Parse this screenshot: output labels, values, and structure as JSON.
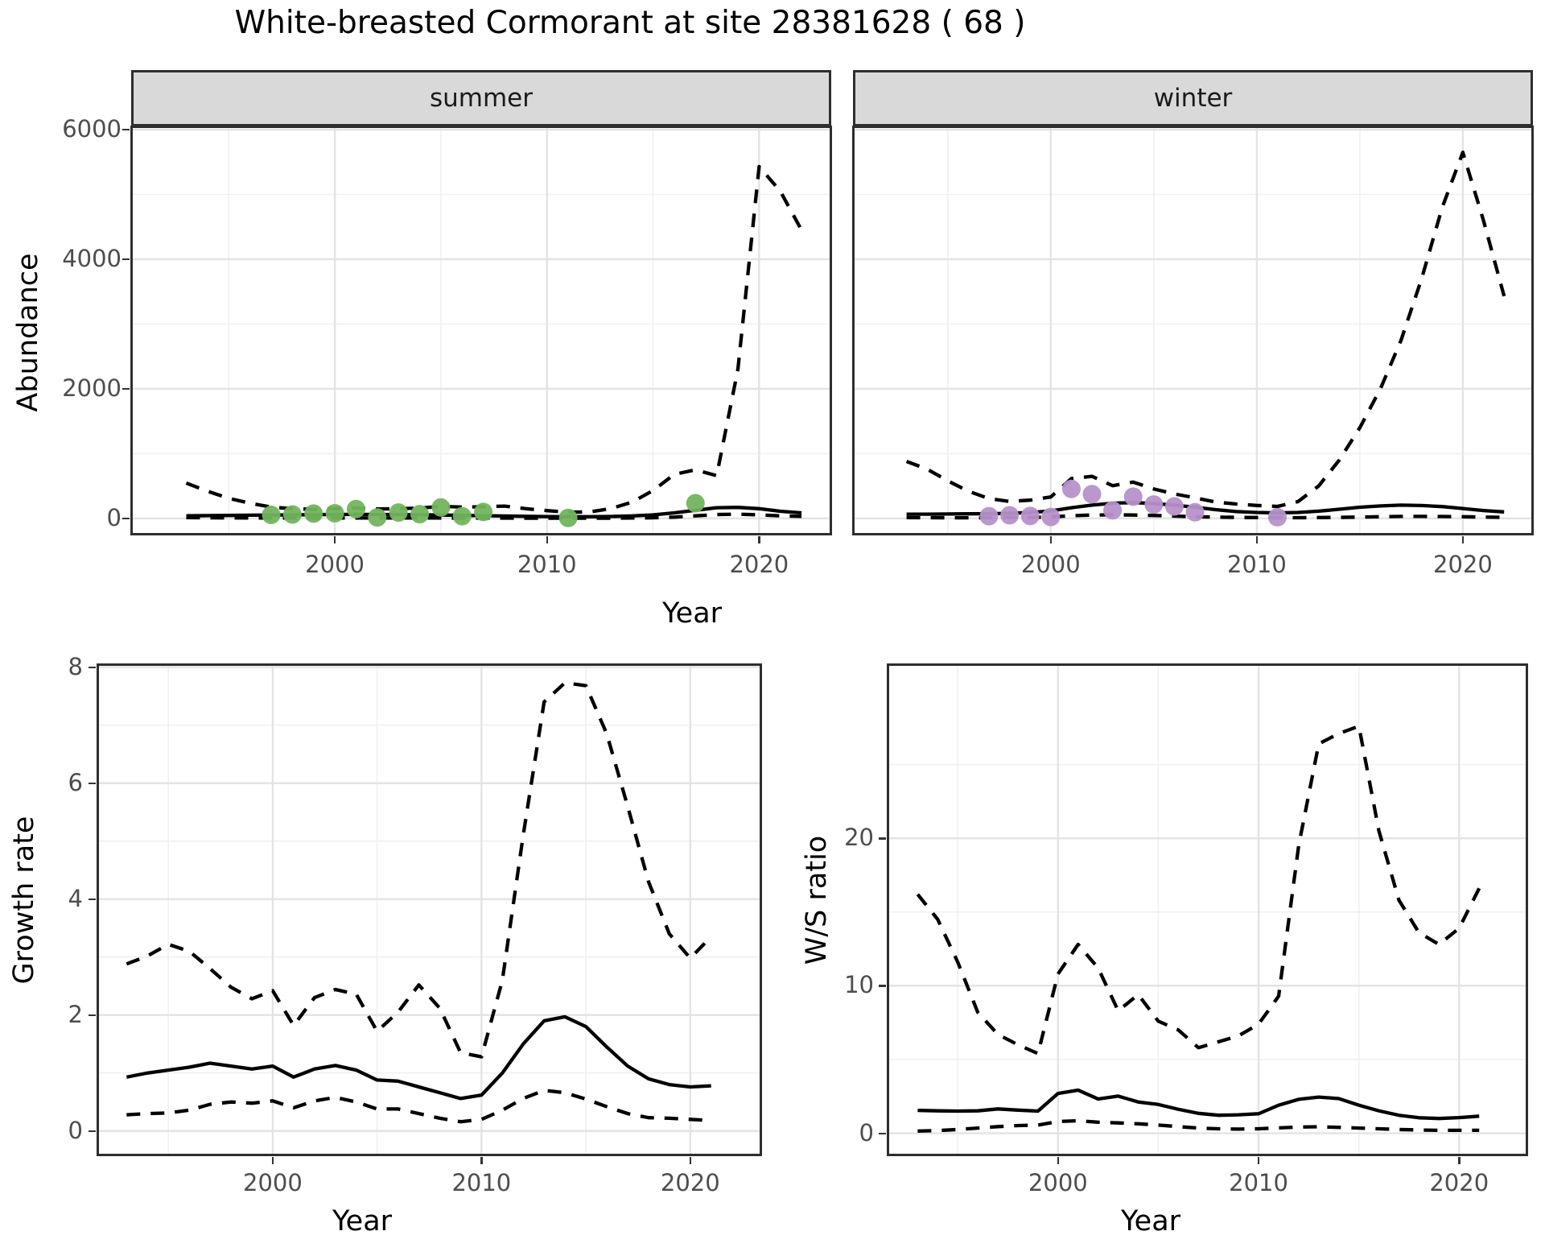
{
  "title": "White-breasted Cormorant at site 28381628 ( 68 )",
  "facets": {
    "summer": "summer",
    "winter": "winter"
  },
  "axis_titles": {
    "abundance": "Abundance",
    "growth": "Growth rate",
    "ws_ratio": "W/S ratio",
    "year_top": "Year",
    "year_bottom_left": "Year",
    "year_bottom_right": "Year"
  },
  "colors": {
    "summer_point": "#72b55e",
    "winter_point": "#b691c9",
    "line": "#000000",
    "strip_bg": "#d9d9d9",
    "panel_border": "#2e2e2e",
    "grid_major": "#e3e3e3",
    "grid_minor": "#f0f0f0",
    "tick_text": "#4d4d4d"
  },
  "chart_data": [
    {
      "id": "abundance-summer",
      "type": "line",
      "strip": "summer",
      "xlabel": "Year",
      "ylabel": "Abundance",
      "xlim": [
        1990.4,
        2023.4
      ],
      "ylim": [
        -250,
        6050
      ],
      "xticks": {
        "major": [
          2000,
          2010,
          2020
        ],
        "minor": [
          1995,
          2005,
          2015
        ],
        "labels": [
          "2000",
          "2010",
          "2020"
        ]
      },
      "yticks": {
        "major": [
          0,
          2000,
          4000,
          6000
        ],
        "minor": [
          1000,
          3000,
          5000
        ],
        "labels": [
          "0",
          "2000",
          "4000",
          "6000"
        ]
      },
      "x": [
        1993,
        1994,
        1995,
        1996,
        1997,
        1998,
        1999,
        2000,
        2001,
        2002,
        2003,
        2004,
        2005,
        2006,
        2007,
        2008,
        2009,
        2010,
        2011,
        2012,
        2013,
        2014,
        2015,
        2016,
        2017,
        2018,
        2019,
        2020,
        2021,
        2022
      ],
      "series": [
        {
          "name": "upper_ci",
          "style": "dashed",
          "values": [
            545,
            420,
            310,
            235,
            175,
            150,
            140,
            150,
            160,
            145,
            150,
            160,
            185,
            175,
            180,
            190,
            150,
            120,
            95,
            100,
            150,
            250,
            430,
            680,
            750,
            660,
            2300,
            5430,
            5050,
            4450
          ]
        },
        {
          "name": "median",
          "style": "solid",
          "values": [
            40,
            43,
            46,
            49,
            52,
            55,
            58,
            61,
            62,
            61,
            59,
            56,
            52,
            47,
            42,
            37,
            32,
            28,
            26,
            26,
            30,
            38,
            55,
            85,
            125,
            165,
            170,
            150,
            110,
            85
          ]
        },
        {
          "name": "lower_ci",
          "style": "dashed",
          "values": [
            12,
            10,
            8,
            7,
            6,
            6,
            6,
            6,
            7,
            6,
            6,
            6,
            6,
            5,
            5,
            5,
            4,
            3,
            3,
            3,
            4,
            6,
            10,
            20,
            40,
            60,
            65,
            55,
            40,
            32
          ]
        }
      ],
      "points": {
        "name": "observed_summer",
        "color": "#72b55e",
        "x": [
          1997,
          1998,
          1999,
          2000,
          2001,
          2002,
          2003,
          2004,
          2005,
          2006,
          2007,
          2011,
          2017
        ],
        "y": [
          55,
          60,
          75,
          80,
          145,
          15,
          90,
          65,
          170,
          35,
          100,
          8,
          235
        ]
      }
    },
    {
      "id": "abundance-winter",
      "type": "line",
      "strip": "winter",
      "xlabel": "Year",
      "ylabel": "Abundance",
      "xlim": [
        1990.4,
        2023.4
      ],
      "ylim": [
        -250,
        6050
      ],
      "xticks": {
        "major": [
          2000,
          2010,
          2020
        ],
        "minor": [
          1995,
          2005,
          2015
        ],
        "labels": [
          "2000",
          "2010",
          "2020"
        ]
      },
      "yticks": {
        "major": [
          0,
          2000,
          4000,
          6000
        ],
        "minor": [
          1000,
          3000,
          5000
        ],
        "labels": [
          "0",
          "2000",
          "4000",
          "6000"
        ]
      },
      "x": [
        1993,
        1994,
        1995,
        1996,
        1997,
        1998,
        1999,
        2000,
        2001,
        2002,
        2003,
        2004,
        2005,
        2006,
        2007,
        2008,
        2009,
        2010,
        2011,
        2012,
        2013,
        2014,
        2015,
        2016,
        2017,
        2018,
        2019,
        2020,
        2021,
        2022
      ],
      "series": [
        {
          "name": "upper_ci",
          "style": "dashed",
          "values": [
            880,
            760,
            580,
            420,
            305,
            262,
            282,
            330,
            615,
            650,
            505,
            560,
            455,
            378,
            318,
            252,
            222,
            200,
            185,
            260,
            500,
            900,
            1400,
            2000,
            2750,
            3700,
            4800,
            5650,
            4600,
            3430
          ]
        },
        {
          "name": "median",
          "style": "solid",
          "values": [
            65,
            66,
            68,
            70,
            73,
            78,
            92,
            115,
            165,
            205,
            235,
            245,
            230,
            205,
            172,
            135,
            105,
            92,
            86,
            92,
            112,
            142,
            172,
            192,
            205,
            198,
            182,
            152,
            122,
            100
          ]
        },
        {
          "name": "lower_ci",
          "style": "dashed",
          "values": [
            12,
            11,
            10,
            10,
            11,
            13,
            16,
            22,
            42,
            52,
            56,
            52,
            46,
            36,
            26,
            20,
            16,
            13,
            11,
            11,
            13,
            16,
            21,
            26,
            31,
            31,
            29,
            26,
            21,
            16
          ]
        }
      ],
      "points": {
        "name": "observed_winter",
        "color": "#b691c9",
        "x": [
          1997,
          1998,
          1999,
          2000,
          2001,
          2002,
          2003,
          2004,
          2005,
          2006,
          2007,
          2011
        ],
        "y": [
          35,
          48,
          38,
          22,
          455,
          375,
          125,
          335,
          215,
          185,
          95,
          18
        ]
      }
    },
    {
      "id": "growth-rate",
      "type": "line",
      "strip": "",
      "xlabel": "Year",
      "ylabel": "Growth rate",
      "xlim": [
        1991.6,
        2023.4
      ],
      "ylim": [
        -0.42,
        8.05
      ],
      "xticks": {
        "major": [
          2000,
          2010,
          2020
        ],
        "minor": [
          1995,
          2005,
          2015
        ],
        "labels": [
          "2000",
          "2010",
          "2020"
        ]
      },
      "yticks": {
        "major": [
          0,
          2,
          4,
          6,
          8
        ],
        "minor": [
          1,
          3,
          5,
          7
        ],
        "labels": [
          "0",
          "2",
          "4",
          "6",
          "8"
        ]
      },
      "x": [
        1993,
        1994,
        1995,
        1996,
        1997,
        1998,
        1999,
        2000,
        2001,
        2002,
        2003,
        2004,
        2005,
        2006,
        2007,
        2008,
        2009,
        2010,
        2011,
        2012,
        2013,
        2014,
        2015,
        2016,
        2017,
        2018,
        2019,
        2020,
        2021
      ],
      "series": [
        {
          "name": "upper_ci",
          "style": "dashed",
          "values": [
            2.88,
            3.02,
            3.22,
            3.1,
            2.8,
            2.48,
            2.28,
            2.42,
            1.82,
            2.3,
            2.44,
            2.36,
            1.72,
            2.05,
            2.52,
            2.12,
            1.35,
            1.28,
            2.6,
            5.1,
            7.4,
            7.73,
            7.68,
            6.85,
            5.6,
            4.3,
            3.4,
            2.98,
            3.35
          ]
        },
        {
          "name": "median",
          "style": "solid",
          "values": [
            0.93,
            1.0,
            1.05,
            1.1,
            1.17,
            1.12,
            1.07,
            1.12,
            0.93,
            1.07,
            1.13,
            1.05,
            0.88,
            0.86,
            0.76,
            0.66,
            0.56,
            0.62,
            1.0,
            1.5,
            1.9,
            1.97,
            1.8,
            1.45,
            1.12,
            0.9,
            0.8,
            0.76,
            0.78
          ]
        },
        {
          "name": "lower_ci",
          "style": "dashed",
          "values": [
            0.28,
            0.3,
            0.31,
            0.36,
            0.46,
            0.5,
            0.48,
            0.52,
            0.4,
            0.52,
            0.58,
            0.5,
            0.38,
            0.38,
            0.3,
            0.22,
            0.16,
            0.2,
            0.36,
            0.56,
            0.7,
            0.66,
            0.55,
            0.42,
            0.3,
            0.23,
            0.22,
            0.2,
            0.18
          ]
        }
      ],
      "points": null
    },
    {
      "id": "ws-ratio",
      "type": "line",
      "strip": "",
      "xlabel": "Year",
      "ylabel": "W/S ratio",
      "xlim": [
        1991.5,
        2023.4
      ],
      "ylim": [
        -1.5,
        31.8
      ],
      "xticks": {
        "major": [
          2000,
          2010,
          2020
        ],
        "minor": [
          1995,
          2005,
          2015
        ],
        "labels": [
          "2000",
          "2010",
          "2020"
        ]
      },
      "yticks": {
        "major": [
          0,
          10,
          20
        ],
        "minor": [
          5,
          15,
          25
        ],
        "labels": [
          "0",
          "10",
          "20"
        ]
      },
      "x": [
        1993,
        1994,
        1995,
        1996,
        1997,
        1998,
        1999,
        2000,
        2001,
        2002,
        2003,
        2004,
        2005,
        2006,
        2007,
        2008,
        2009,
        2010,
        2011,
        2012,
        2013,
        2014,
        2015,
        2016,
        2017,
        2018,
        2019,
        2020,
        2021
      ],
      "series": [
        {
          "name": "upper_ci",
          "style": "dashed",
          "values": [
            16.2,
            14.5,
            11.6,
            8.2,
            6.7,
            6.0,
            5.4,
            10.8,
            12.8,
            11.2,
            8.3,
            9.4,
            7.6,
            7.0,
            5.8,
            6.2,
            6.6,
            7.4,
            9.3,
            19.5,
            26.4,
            27.1,
            27.6,
            20.5,
            15.8,
            13.6,
            12.8,
            13.9,
            16.6
          ]
        },
        {
          "name": "median",
          "style": "solid",
          "values": [
            1.55,
            1.52,
            1.5,
            1.52,
            1.65,
            1.57,
            1.5,
            2.7,
            2.92,
            2.32,
            2.52,
            2.12,
            1.95,
            1.62,
            1.35,
            1.22,
            1.25,
            1.32,
            1.9,
            2.3,
            2.45,
            2.35,
            1.9,
            1.52,
            1.22,
            1.05,
            1.0,
            1.06,
            1.16
          ]
        },
        {
          "name": "lower_ci",
          "style": "dashed",
          "values": [
            0.15,
            0.18,
            0.25,
            0.35,
            0.45,
            0.52,
            0.55,
            0.8,
            0.85,
            0.75,
            0.7,
            0.64,
            0.55,
            0.45,
            0.35,
            0.3,
            0.28,
            0.3,
            0.36,
            0.42,
            0.44,
            0.4,
            0.35,
            0.3,
            0.25,
            0.22,
            0.2,
            0.2,
            0.2
          ]
        }
      ],
      "points": null
    }
  ]
}
